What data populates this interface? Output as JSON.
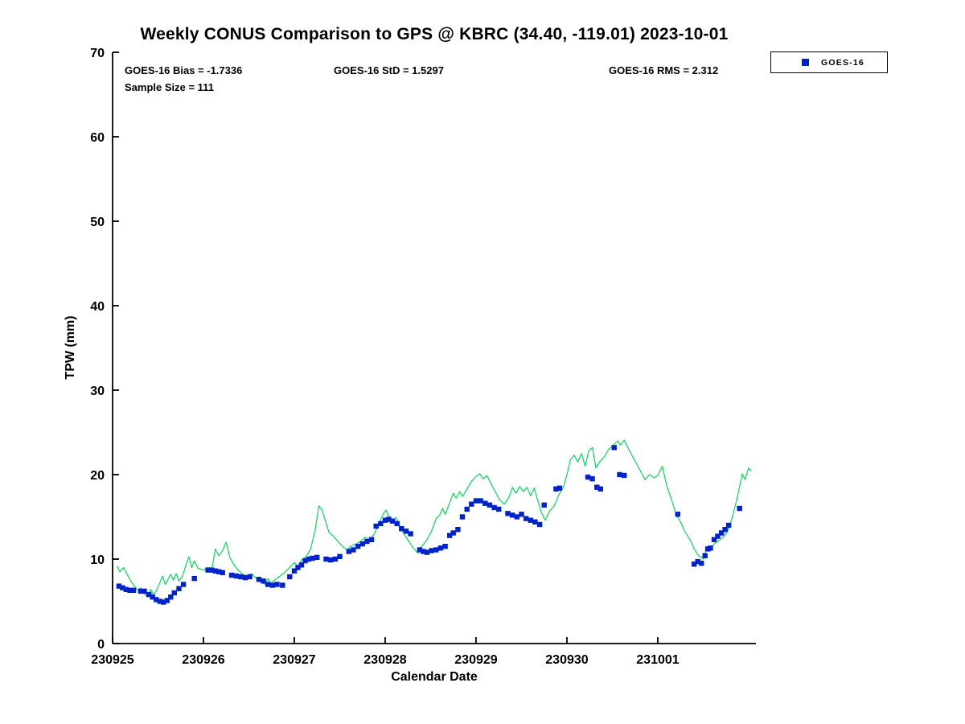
{
  "figure": {
    "title": "Weekly CONUS Comparison to GPS @ KBRC (34.40, -119.01) 2023-10-01",
    "stats": {
      "bias": "GOES-16 Bias = -1.7336",
      "std": "GOES-16 StD = 1.5297",
      "rms": "GOES-16 RMS = 2.312",
      "sample_size": "Sample Size = 111"
    },
    "legend": {
      "items": [
        {
          "label": "GOES-16",
          "marker": "square",
          "color": "#0022CC"
        }
      ]
    }
  },
  "chart_data": {
    "type": "line",
    "title": "Weekly CONUS Comparison to GPS @ KBRC (34.40, -119.01) 2023-10-01",
    "xlabel": "Calendar Date",
    "ylabel": "TPW (mm)",
    "xlim": [
      0,
      7.08
    ],
    "ylim": [
      0,
      70
    ],
    "x_ticks": [
      0,
      1,
      2,
      3,
      4,
      5,
      6
    ],
    "x_tick_labels": [
      "230925",
      "230926",
      "230927",
      "230928",
      "230929",
      "230930",
      "231001"
    ],
    "y_ticks": [
      0,
      10,
      20,
      30,
      40,
      50,
      60,
      70
    ],
    "x_encoding": "fractional days after 230925 (YYMMDD)",
    "grid": false,
    "legend_position": "top-right-outside",
    "series": [
      {
        "name": "GPS",
        "type": "line",
        "color": "#00DD55",
        "points": [
          [
            0.05,
            9.2
          ],
          [
            0.08,
            8.5
          ],
          [
            0.12,
            9.0
          ],
          [
            0.16,
            8.2
          ],
          [
            0.2,
            7.4
          ],
          [
            0.24,
            6.8
          ],
          [
            0.28,
            6.3
          ],
          [
            0.31,
            6.6
          ],
          [
            0.34,
            6.0
          ],
          [
            0.38,
            5.6
          ],
          [
            0.42,
            6.4
          ],
          [
            0.45,
            5.8
          ],
          [
            0.48,
            6.2
          ],
          [
            0.52,
            7.2
          ],
          [
            0.55,
            8.0
          ],
          [
            0.58,
            7.0
          ],
          [
            0.61,
            7.6
          ],
          [
            0.64,
            8.2
          ],
          [
            0.67,
            7.5
          ],
          [
            0.7,
            8.3
          ],
          [
            0.73,
            7.4
          ],
          [
            0.77,
            8.0
          ],
          [
            0.81,
            9.4
          ],
          [
            0.84,
            10.3
          ],
          [
            0.87,
            9.0
          ],
          [
            0.9,
            9.8
          ],
          [
            0.94,
            8.9
          ],
          [
            1.0,
            8.7
          ],
          [
            1.05,
            9.0
          ],
          [
            1.09,
            8.6
          ],
          [
            1.13,
            11.2
          ],
          [
            1.17,
            10.4
          ],
          [
            1.21,
            11.0
          ],
          [
            1.25,
            12.0
          ],
          [
            1.29,
            10.2
          ],
          [
            1.33,
            9.4
          ],
          [
            1.38,
            8.7
          ],
          [
            1.43,
            8.2
          ],
          [
            1.48,
            8.0
          ],
          [
            1.53,
            8.3
          ],
          [
            1.58,
            7.7
          ],
          [
            1.63,
            7.3
          ],
          [
            1.68,
            7.0
          ],
          [
            1.71,
            7.7
          ],
          [
            1.74,
            7.1
          ],
          [
            1.78,
            7.5
          ],
          [
            1.83,
            7.9
          ],
          [
            1.88,
            8.3
          ],
          [
            1.93,
            8.8
          ],
          [
            1.97,
            9.3
          ],
          [
            2.0,
            9.6
          ],
          [
            2.04,
            9.1
          ],
          [
            2.08,
            9.9
          ],
          [
            2.13,
            10.3
          ],
          [
            2.18,
            11.2
          ],
          [
            2.23,
            13.5
          ],
          [
            2.27,
            16.3
          ],
          [
            2.3,
            15.9
          ],
          [
            2.34,
            14.6
          ],
          [
            2.38,
            13.2
          ],
          [
            2.43,
            12.7
          ],
          [
            2.48,
            12.1
          ],
          [
            2.53,
            11.5
          ],
          [
            2.58,
            11.1
          ],
          [
            2.63,
            11.6
          ],
          [
            2.68,
            11.8
          ],
          [
            2.73,
            12.1
          ],
          [
            2.78,
            12.6
          ],
          [
            2.83,
            12.2
          ],
          [
            2.88,
            13.0
          ],
          [
            2.93,
            14.1
          ],
          [
            2.98,
            15.4
          ],
          [
            3.01,
            15.8
          ],
          [
            3.04,
            15.1
          ],
          [
            3.08,
            14.6
          ],
          [
            3.12,
            14.9
          ],
          [
            3.16,
            13.9
          ],
          [
            3.21,
            12.9
          ],
          [
            3.26,
            12.1
          ],
          [
            3.31,
            11.3
          ],
          [
            3.36,
            10.7
          ],
          [
            3.41,
            11.6
          ],
          [
            3.46,
            12.3
          ],
          [
            3.51,
            13.3
          ],
          [
            3.56,
            14.8
          ],
          [
            3.6,
            15.2
          ],
          [
            3.63,
            16.0
          ],
          [
            3.66,
            15.3
          ],
          [
            3.7,
            16.4
          ],
          [
            3.75,
            17.8
          ],
          [
            3.78,
            17.2
          ],
          [
            3.82,
            18.0
          ],
          [
            3.85,
            17.4
          ],
          [
            3.9,
            18.3
          ],
          [
            3.95,
            19.2
          ],
          [
            4.0,
            19.8
          ],
          [
            4.04,
            20.1
          ],
          [
            4.08,
            19.5
          ],
          [
            4.12,
            19.9
          ],
          [
            4.16,
            19.0
          ],
          [
            4.21,
            18.0
          ],
          [
            4.26,
            17.0
          ],
          [
            4.31,
            16.5
          ],
          [
            4.36,
            17.3
          ],
          [
            4.4,
            18.5
          ],
          [
            4.44,
            17.8
          ],
          [
            4.48,
            18.6
          ],
          [
            4.52,
            18.0
          ],
          [
            4.56,
            18.5
          ],
          [
            4.6,
            17.5
          ],
          [
            4.64,
            18.4
          ],
          [
            4.68,
            16.9
          ],
          [
            4.72,
            15.5
          ],
          [
            4.76,
            14.6
          ],
          [
            4.81,
            15.7
          ],
          [
            4.86,
            16.3
          ],
          [
            4.91,
            17.6
          ],
          [
            4.96,
            18.5
          ],
          [
            5.0,
            20.0
          ],
          [
            5.04,
            21.8
          ],
          [
            5.08,
            22.3
          ],
          [
            5.12,
            21.5
          ],
          [
            5.16,
            22.5
          ],
          [
            5.2,
            21.0
          ],
          [
            5.24,
            22.8
          ],
          [
            5.28,
            23.2
          ],
          [
            5.32,
            20.8
          ],
          [
            5.36,
            21.5
          ],
          [
            5.41,
            22.1
          ],
          [
            5.46,
            23.0
          ],
          [
            5.51,
            23.5
          ],
          [
            5.56,
            24.0
          ],
          [
            5.59,
            23.5
          ],
          [
            5.63,
            24.1
          ],
          [
            5.67,
            23.2
          ],
          [
            5.72,
            22.2
          ],
          [
            5.77,
            21.2
          ],
          [
            5.82,
            20.2
          ],
          [
            5.86,
            19.4
          ],
          [
            5.91,
            20.0
          ],
          [
            5.96,
            19.6
          ],
          [
            6.0,
            19.9
          ],
          [
            6.05,
            21.0
          ],
          [
            6.1,
            18.6
          ],
          [
            6.15,
            17.1
          ],
          [
            6.2,
            15.3
          ],
          [
            6.25,
            14.4
          ],
          [
            6.3,
            13.2
          ],
          [
            6.35,
            12.4
          ],
          [
            6.4,
            11.2
          ],
          [
            6.45,
            10.4
          ],
          [
            6.5,
            10.0
          ],
          [
            6.54,
            11.3
          ],
          [
            6.58,
            11.0
          ],
          [
            6.62,
            11.8
          ],
          [
            6.66,
            12.1
          ],
          [
            6.71,
            12.5
          ],
          [
            6.76,
            13.1
          ],
          [
            6.81,
            14.6
          ],
          [
            6.86,
            16.6
          ],
          [
            6.9,
            18.6
          ],
          [
            6.93,
            20.1
          ],
          [
            6.96,
            19.4
          ],
          [
            7.0,
            20.8
          ],
          [
            7.03,
            20.4
          ]
        ]
      },
      {
        "name": "GOES-16",
        "type": "scatter",
        "marker": "square",
        "color": "#0022CC",
        "points": [
          [
            0.07,
            6.8
          ],
          [
            0.11,
            6.6
          ],
          [
            0.15,
            6.4
          ],
          [
            0.19,
            6.3
          ],
          [
            0.23,
            6.3
          ],
          [
            0.31,
            6.2
          ],
          [
            0.35,
            6.2
          ],
          [
            0.4,
            5.8
          ],
          [
            0.44,
            5.5
          ],
          [
            0.48,
            5.2
          ],
          [
            0.52,
            5.0
          ],
          [
            0.56,
            4.9
          ],
          [
            0.6,
            5.1
          ],
          [
            0.64,
            5.5
          ],
          [
            0.68,
            6.0
          ],
          [
            0.73,
            6.5
          ],
          [
            0.78,
            7.0
          ],
          [
            0.9,
            7.7
          ],
          [
            1.05,
            8.7
          ],
          [
            1.09,
            8.7
          ],
          [
            1.13,
            8.6
          ],
          [
            1.17,
            8.5
          ],
          [
            1.21,
            8.4
          ],
          [
            1.31,
            8.1
          ],
          [
            1.36,
            8.0
          ],
          [
            1.41,
            7.9
          ],
          [
            1.46,
            7.8
          ],
          [
            1.51,
            7.9
          ],
          [
            1.61,
            7.6
          ],
          [
            1.66,
            7.4
          ],
          [
            1.71,
            7.0
          ],
          [
            1.76,
            6.9
          ],
          [
            1.81,
            7.0
          ],
          [
            1.87,
            6.9
          ],
          [
            1.95,
            7.9
          ],
          [
            2.0,
            8.6
          ],
          [
            2.04,
            9.0
          ],
          [
            2.08,
            9.3
          ],
          [
            2.12,
            9.8
          ],
          [
            2.16,
            10.0
          ],
          [
            2.2,
            10.1
          ],
          [
            2.25,
            10.2
          ],
          [
            2.35,
            10.0
          ],
          [
            2.4,
            9.9
          ],
          [
            2.45,
            10.0
          ],
          [
            2.5,
            10.3
          ],
          [
            2.6,
            10.9
          ],
          [
            2.65,
            11.1
          ],
          [
            2.7,
            11.5
          ],
          [
            2.75,
            11.8
          ],
          [
            2.8,
            12.1
          ],
          [
            2.85,
            12.3
          ],
          [
            2.9,
            13.9
          ],
          [
            2.95,
            14.2
          ],
          [
            3.0,
            14.6
          ],
          [
            3.04,
            14.7
          ],
          [
            3.08,
            14.5
          ],
          [
            3.13,
            14.2
          ],
          [
            3.18,
            13.6
          ],
          [
            3.23,
            13.3
          ],
          [
            3.28,
            13.0
          ],
          [
            3.38,
            11.1
          ],
          [
            3.42,
            10.9
          ],
          [
            3.46,
            10.8
          ],
          [
            3.51,
            11.0
          ],
          [
            3.56,
            11.1
          ],
          [
            3.61,
            11.3
          ],
          [
            3.66,
            11.5
          ],
          [
            3.71,
            12.8
          ],
          [
            3.75,
            13.1
          ],
          [
            3.8,
            13.5
          ],
          [
            3.85,
            15.0
          ],
          [
            3.9,
            15.9
          ],
          [
            3.95,
            16.5
          ],
          [
            4.0,
            16.9
          ],
          [
            4.05,
            16.9
          ],
          [
            4.1,
            16.6
          ],
          [
            4.15,
            16.4
          ],
          [
            4.2,
            16.1
          ],
          [
            4.25,
            15.9
          ],
          [
            4.35,
            15.4
          ],
          [
            4.4,
            15.2
          ],
          [
            4.45,
            15.0
          ],
          [
            4.5,
            15.3
          ],
          [
            4.55,
            14.8
          ],
          [
            4.6,
            14.6
          ],
          [
            4.65,
            14.4
          ],
          [
            4.7,
            14.1
          ],
          [
            4.75,
            16.4
          ],
          [
            4.88,
            18.3
          ],
          [
            4.92,
            18.4
          ],
          [
            5.23,
            19.7
          ],
          [
            5.28,
            19.5
          ],
          [
            5.33,
            18.5
          ],
          [
            5.37,
            18.3
          ],
          [
            5.52,
            23.2
          ],
          [
            5.58,
            20.0
          ],
          [
            5.63,
            19.9
          ],
          [
            6.22,
            15.3
          ],
          [
            6.4,
            9.4
          ],
          [
            6.44,
            9.7
          ],
          [
            6.48,
            9.5
          ],
          [
            6.52,
            10.4
          ],
          [
            6.55,
            11.2
          ],
          [
            6.58,
            11.3
          ],
          [
            6.62,
            12.3
          ],
          [
            6.66,
            12.7
          ],
          [
            6.7,
            13.1
          ],
          [
            6.74,
            13.5
          ],
          [
            6.78,
            14.0
          ],
          [
            6.9,
            16.0
          ]
        ]
      }
    ]
  }
}
